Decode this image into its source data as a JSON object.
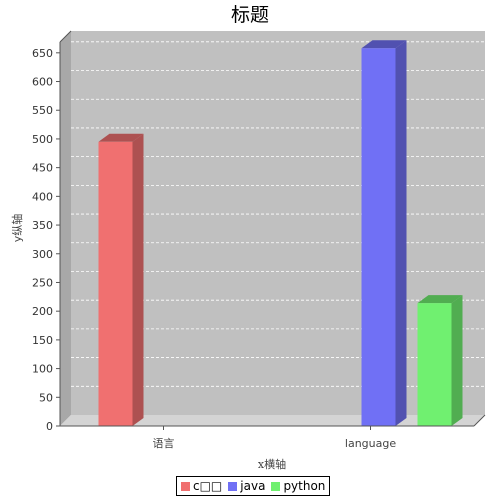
{
  "chart_data": {
    "type": "bar",
    "title": "标题",
    "xlabel": "x横轴",
    "ylabel": "y纵轴",
    "categories": [
      "语言",
      "language"
    ],
    "series": [
      {
        "name": "c□□",
        "color": "#f07070",
        "values": [
          495,
          0
        ]
      },
      {
        "name": "java",
        "color": "#7070f5",
        "values": [
          0,
          658
        ]
      },
      {
        "name": "python",
        "color": "#70f070",
        "values": [
          0,
          214
        ]
      }
    ],
    "ylim": [
      0,
      688
    ],
    "y_ticks": [
      0,
      50,
      100,
      150,
      200,
      250,
      300,
      350,
      400,
      450,
      500,
      550,
      600,
      650
    ],
    "grid": true,
    "legend_position": "bottom"
  }
}
